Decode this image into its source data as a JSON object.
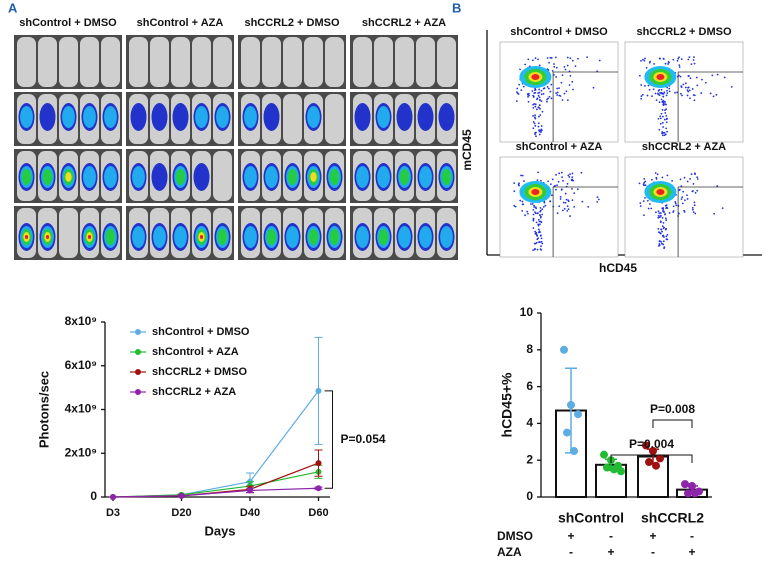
{
  "panel_labels": [
    "A",
    "B"
  ],
  "imaging": {
    "group_labels": [
      "shControl + DMSO",
      "shControl + AZA",
      "shCCRL2 + DMSO",
      "shCCRL2 + AZA"
    ]
  },
  "flow": {
    "plot_titles": [
      "shControl + DMSO",
      "shCCRL2 + DMSO",
      "shControl + AZA",
      "shCCRL2 + AZA"
    ],
    "xlabel": "hCD45",
    "ylabel": "mCD45"
  },
  "chart_data": [
    {
      "type": "line",
      "xlabel": "Days",
      "ylabel": "Photons/sec",
      "categories": [
        "D3",
        "D20",
        "D40",
        "D60"
      ],
      "ylim": [
        0,
        8000000000
      ],
      "yticks": [
        0,
        {
          "value": 2000000000,
          "label": "2x10⁹"
        },
        {
          "value": 4000000000,
          "label": "4x10⁹"
        },
        {
          "value": 6000000000,
          "label": "6x10⁹"
        },
        {
          "value": 8000000000,
          "label": "8x10⁹"
        }
      ],
      "series": [
        {
          "name": "shControl + DMSO",
          "color": "#5dade2",
          "values": [
            0,
            100000000,
            700000000,
            4850000000
          ],
          "errors": [
            0,
            50000000,
            400000000,
            2450000000
          ]
        },
        {
          "name": "shControl + AZA",
          "color": "#22bb33",
          "values": [
            0,
            100000000,
            500000000,
            1150000000
          ],
          "errors": [
            0,
            40000000,
            200000000,
            300000000
          ]
        },
        {
          "name": "shCCRL2 + DMSO",
          "color": "#a01010",
          "values": [
            0,
            50000000,
            350000000,
            1550000000
          ],
          "errors": [
            0,
            30000000,
            150000000,
            600000000
          ]
        },
        {
          "name": "shCCRL2 + AZA",
          "color": "#8e24aa",
          "values": [
            0,
            50000000,
            300000000,
            400000000
          ],
          "errors": [
            0,
            20000000,
            100000000,
            50000000
          ]
        }
      ],
      "annotations": [
        "P=0.054"
      ]
    },
    {
      "type": "bar",
      "ylabel": "hCD45+%",
      "categories": [
        null,
        null,
        null,
        null
      ],
      "values": [
        4.7,
        1.75,
        2.2,
        0.4
      ],
      "errors": [
        2.3,
        0.3,
        0.4,
        0.2
      ],
      "colors": [
        "#5dade2",
        "#22bb33",
        "#a01010",
        "#8e24aa"
      ],
      "points": [
        [
          8.0,
          5.0,
          4.5,
          3.5,
          2.5
        ],
        [
          2.3,
          2.0,
          1.7,
          1.6,
          1.5,
          1.4
        ],
        [
          2.8,
          2.5,
          2.1,
          1.9,
          1.7
        ],
        [
          0.7,
          0.6,
          0.3,
          0.2,
          0.2
        ]
      ],
      "ylim": [
        0,
        10
      ],
      "yticks": [
        0,
        2,
        4,
        6,
        8,
        10
      ],
      "group_labels": [
        "shControl",
        "shCCRL2"
      ],
      "treatments": [
        {
          "name": "DMSO",
          "signs": [
            "+",
            "-",
            "+",
            "-"
          ]
        },
        {
          "name": "AZA",
          "signs": [
            "-",
            "+",
            "-",
            "+"
          ]
        }
      ],
      "annotations": [
        "P=0.004",
        "P=0.008"
      ]
    }
  ]
}
